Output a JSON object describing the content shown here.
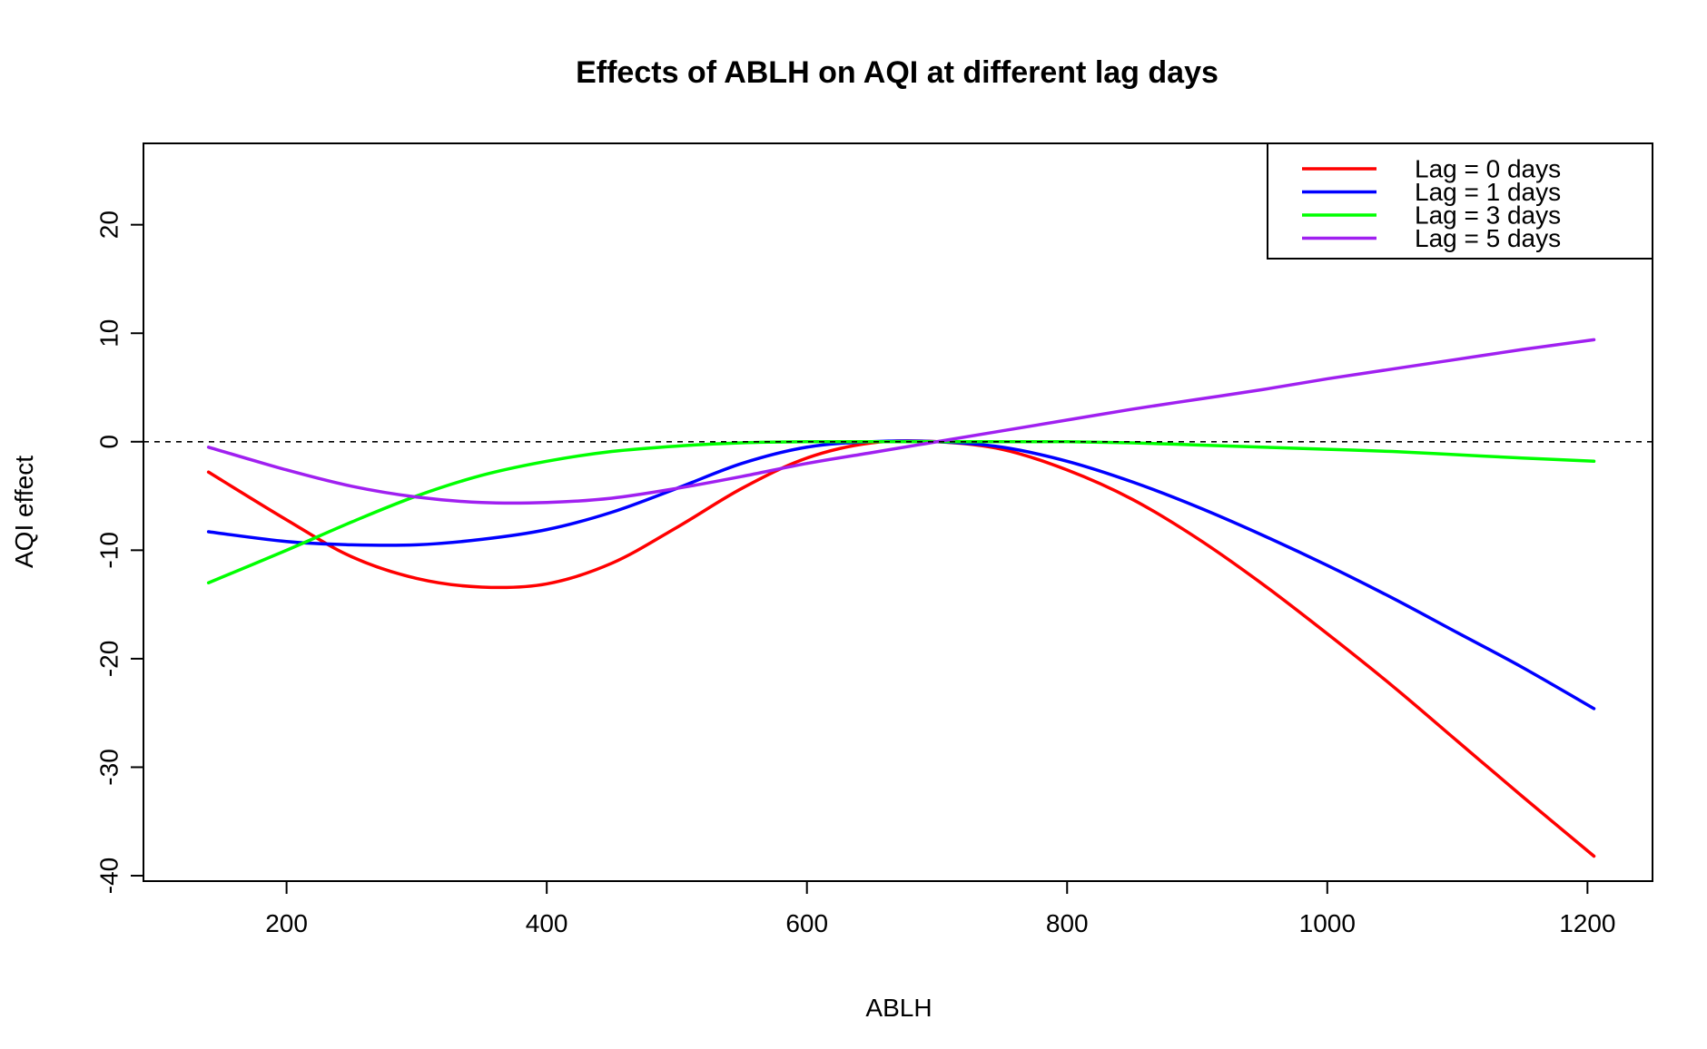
{
  "chart_data": {
    "type": "line",
    "title": "Effects of ABLH on AQI at different lag days",
    "xlabel": "ABLH",
    "ylabel": "AQI effect",
    "xlim": [
      90,
      1250
    ],
    "ylim": [
      -40.5,
      27.5
    ],
    "xticks": [
      200,
      400,
      600,
      800,
      1000,
      1200
    ],
    "yticks": [
      -40,
      -30,
      -20,
      -10,
      0,
      10,
      20
    ],
    "reference_line": {
      "y": 0,
      "style": "dashed"
    },
    "legend_position": "top-right",
    "series": [
      {
        "name": "Lag = 0 days",
        "color": "#ff0000",
        "x": [
          140,
          200,
          250,
          300,
          350,
          400,
          450,
          500,
          550,
          600,
          650,
          700,
          750,
          800,
          850,
          900,
          950,
          1000,
          1050,
          1100,
          1150,
          1205
        ],
        "y": [
          -2.8,
          -7.2,
          -10.6,
          -12.6,
          -13.4,
          -13.1,
          -11.2,
          -7.9,
          -4.3,
          -1.5,
          -0.1,
          0,
          -0.7,
          -2.6,
          -5.3,
          -8.9,
          -13.1,
          -17.7,
          -22.5,
          -27.6,
          -32.7,
          -38.2
        ]
      },
      {
        "name": "Lag = 1 days",
        "color": "#0000ff",
        "x": [
          140,
          200,
          250,
          300,
          350,
          400,
          450,
          500,
          550,
          600,
          650,
          700,
          750,
          800,
          850,
          900,
          950,
          1000,
          1050,
          1100,
          1150,
          1205
        ],
        "y": [
          -8.3,
          -9.2,
          -9.5,
          -9.5,
          -9.0,
          -8.1,
          -6.5,
          -4.3,
          -2.0,
          -0.5,
          0,
          0,
          -0.5,
          -1.8,
          -3.7,
          -6.0,
          -8.6,
          -11.4,
          -14.4,
          -17.6,
          -20.8,
          -24.6
        ]
      },
      {
        "name": "Lag = 3 days",
        "color": "#00ff00",
        "x": [
          140,
          200,
          250,
          300,
          350,
          400,
          450,
          500,
          550,
          600,
          650,
          700,
          750,
          800,
          850,
          900,
          950,
          1000,
          1050,
          1100,
          1150,
          1205
        ],
        "y": [
          -13.0,
          -10.0,
          -7.4,
          -5.0,
          -3.1,
          -1.8,
          -0.9,
          -0.4,
          -0.1,
          0,
          0,
          0,
          0,
          0,
          -0.1,
          -0.3,
          -0.5,
          -0.7,
          -0.9,
          -1.2,
          -1.5,
          -1.8
        ]
      },
      {
        "name": "Lag = 5 days",
        "color": "#a020f0",
        "x": [
          140,
          200,
          250,
          300,
          350,
          400,
          450,
          500,
          550,
          600,
          650,
          700,
          750,
          800,
          850,
          900,
          950,
          1000,
          1050,
          1100,
          1150,
          1205
        ],
        "y": [
          -0.5,
          -2.6,
          -4.1,
          -5.1,
          -5.6,
          -5.6,
          -5.2,
          -4.3,
          -3.2,
          -2.0,
          -1.0,
          0,
          1.0,
          2.0,
          3.0,
          3.9,
          4.8,
          5.8,
          6.7,
          7.6,
          8.5,
          9.4
        ]
      }
    ]
  }
}
